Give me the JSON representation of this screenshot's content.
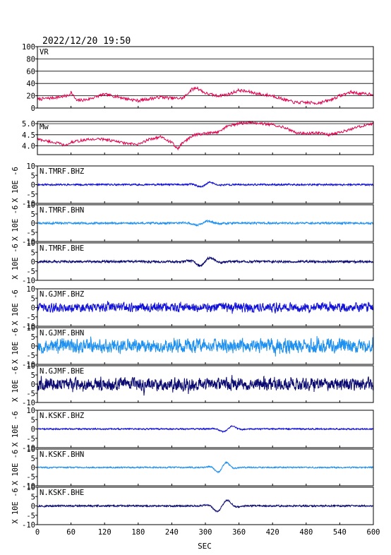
{
  "title": "2022/12/20  19:50",
  "xaxis": {
    "label": "SEC",
    "ticks": [
      0,
      60,
      120,
      180,
      240,
      300,
      360,
      420,
      480,
      540,
      600
    ],
    "range": [
      0,
      600
    ]
  },
  "colors": {
    "frame": "#000000",
    "grid": "#000000",
    "vr": "#e0004e",
    "mw": "#e0004e",
    "bhz": "#1010d8",
    "bhn": "#1e90f0",
    "bhe": "#0a0a70"
  },
  "chart_data": [
    {
      "type": "line",
      "name_label": "VR",
      "ylim": [
        0,
        100
      ],
      "yticks": [
        0,
        20,
        40,
        60,
        80,
        100
      ],
      "grid": true,
      "x": [
        0,
        20,
        40,
        55,
        60,
        70,
        90,
        110,
        120,
        140,
        160,
        180,
        200,
        220,
        240,
        260,
        275,
        285,
        300,
        320,
        340,
        360,
        380,
        400,
        420,
        440,
        460,
        480,
        500,
        520,
        540,
        560,
        580,
        600
      ],
      "y": [
        14,
        16,
        18,
        20,
        26,
        12,
        14,
        20,
        22,
        19,
        15,
        12,
        15,
        18,
        16,
        16,
        30,
        33,
        24,
        20,
        22,
        29,
        26,
        22,
        20,
        14,
        9,
        9,
        8,
        12,
        20,
        26,
        23,
        23
      ],
      "noise": 2.5
    },
    {
      "type": "line",
      "name_label": "Mw",
      "ylim": [
        3.6,
        5.1
      ],
      "yticks": [
        4.0,
        4.5,
        5.0
      ],
      "ytick_labels": [
        "4.0",
        "4.5",
        "5.0"
      ],
      "grid": true,
      "x": [
        0,
        20,
        40,
        50,
        60,
        80,
        100,
        120,
        140,
        160,
        180,
        200,
        220,
        240,
        250,
        260,
        280,
        300,
        320,
        340,
        360,
        380,
        400,
        420,
        440,
        460,
        480,
        500,
        520,
        540,
        560,
        580,
        600
      ],
      "y": [
        4.3,
        4.2,
        4.1,
        4.0,
        4.15,
        4.25,
        4.3,
        4.3,
        4.2,
        4.1,
        4.05,
        4.3,
        4.4,
        4.15,
        3.85,
        4.15,
        4.5,
        4.55,
        4.6,
        4.9,
        5.0,
        5.05,
        5.0,
        4.95,
        4.85,
        4.6,
        4.55,
        4.6,
        4.5,
        4.6,
        4.75,
        4.9,
        5.0
      ],
      "noise": 0.06
    },
    {
      "type": "line",
      "name_label": "N.TMRF.BHZ",
      "ylabel": "X 10E -6",
      "ylim": [
        -10,
        10
      ],
      "yticks": [
        -10,
        -5,
        0,
        5,
        10
      ],
      "color_key": "bhz",
      "noise_amp": 0.6,
      "events": [
        {
          "x": 300,
          "amp": 1.5,
          "width": 20
        }
      ],
      "seed": 11
    },
    {
      "type": "line",
      "name_label": "N.TMRF.BHN",
      "ylabel": "X 10E -6",
      "ylim": [
        -10,
        10
      ],
      "yticks": [
        -10,
        -5,
        0,
        5,
        10
      ],
      "color_key": "bhn",
      "noise_amp": 0.7,
      "events": [
        {
          "x": 295,
          "amp": 1.3,
          "width": 25
        }
      ],
      "seed": 23
    },
    {
      "type": "line",
      "name_label": "N.TMRF.BHE",
      "ylabel": "X 10E -6",
      "ylim": [
        -10,
        10
      ],
      "yticks": [
        -10,
        -5,
        0,
        5,
        10
      ],
      "color_key": "bhe",
      "noise_amp": 0.8,
      "events": [
        {
          "x": 300,
          "amp": 2.6,
          "width": 22
        }
      ],
      "seed": 37
    },
    {
      "type": "line",
      "name_label": "N.GJMF.BHZ",
      "ylabel": "X 10E -6",
      "ylim": [
        -10,
        10
      ],
      "yticks": [
        -10,
        -5,
        0,
        5,
        10
      ],
      "color_key": "bhz",
      "noise_amp": 3.2,
      "events": [],
      "seed": 41
    },
    {
      "type": "line",
      "name_label": "N.GJMF.BHN",
      "ylabel": "X 10E -6",
      "ylim": [
        -10,
        10
      ],
      "yticks": [
        -10,
        -5,
        0,
        5,
        10
      ],
      "color_key": "bhn",
      "noise_amp": 5.0,
      "events": [],
      "seed": 53
    },
    {
      "type": "line",
      "name_label": "N.GJMF.BHE",
      "ylabel": "X 10E -6",
      "ylim": [
        -10,
        10
      ],
      "yticks": [
        -10,
        -5,
        0,
        5,
        10
      ],
      "color_key": "bhe",
      "noise_amp": 4.5,
      "events": [],
      "seed": 67
    },
    {
      "type": "line",
      "name_label": "N.KSKF.BHZ",
      "ylabel": "X 10E -6",
      "ylim": [
        -10,
        10
      ],
      "yticks": [
        -10,
        -5,
        0,
        5,
        10
      ],
      "color_key": "bhz",
      "noise_amp": 0.5,
      "events": [
        {
          "x": 340,
          "amp": 1.8,
          "width": 20
        }
      ],
      "seed": 71
    },
    {
      "type": "line",
      "name_label": "N.KSKF.BHN",
      "ylabel": "X 10E -6",
      "ylim": [
        -10,
        10
      ],
      "yticks": [
        -10,
        -5,
        0,
        5,
        10
      ],
      "color_key": "bhn",
      "noise_amp": 0.5,
      "events": [
        {
          "x": 330,
          "amp": 3.2,
          "width": 18
        }
      ],
      "seed": 83
    },
    {
      "type": "line",
      "name_label": "N.KSKF.BHE",
      "ylabel": "X 10E -6",
      "ylim": [
        -10,
        10
      ],
      "yticks": [
        -10,
        -5,
        0,
        5,
        10
      ],
      "color_key": "bhe",
      "noise_amp": 0.6,
      "events": [
        {
          "x": 330,
          "amp": 3.6,
          "width": 22
        }
      ],
      "seed": 97
    }
  ]
}
